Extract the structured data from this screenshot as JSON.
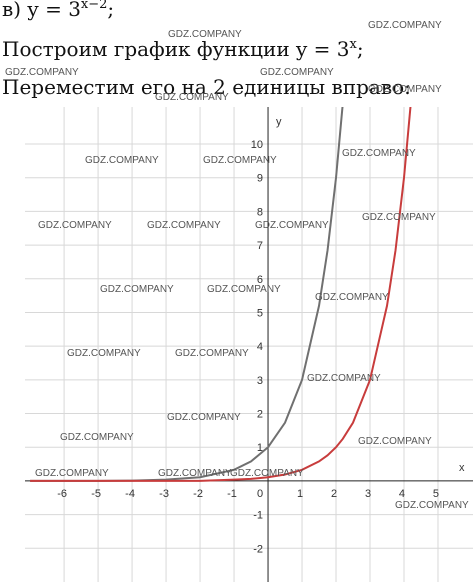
{
  "lines": [
    {
      "text": "в) y = 3",
      "sup": "x−2",
      "tail": ";"
    },
    {
      "text": "Построим график функции y = 3",
      "sup": "x",
      "tail": ";"
    },
    {
      "text": "Переместим его на 2 единицы вправо:"
    }
  ],
  "watermark": "GDZ.COMPANY",
  "chart_data": {
    "type": "line",
    "x_label": "x",
    "y_label": "y",
    "x": [
      -7,
      -6,
      -5,
      -4,
      -3,
      -2,
      -1,
      -0.5,
      0,
      0.5,
      1,
      1.5,
      1.75,
      2,
      2.2,
      2.5,
      3,
      3.5,
      3.75,
      4,
      4.2
    ],
    "series": [
      {
        "name": "y = 3^x",
        "color": "#707070",
        "values": [
          0.0,
          0.0,
          0.0,
          0.01,
          0.04,
          0.11,
          0.33,
          0.58,
          1,
          1.73,
          3,
          5.2,
          6.84,
          9,
          11.21,
          null,
          null,
          null,
          null,
          null,
          null
        ]
      },
      {
        "name": "y = 3^(x−2)",
        "color": "#c83c3c",
        "values": [
          0.0,
          0.0,
          0.0,
          0.0,
          0.0,
          0.0,
          0.04,
          0.06,
          0.11,
          0.19,
          0.33,
          0.58,
          0.76,
          1,
          1.25,
          1.73,
          3,
          5.2,
          6.84,
          9,
          11.21
        ]
      }
    ],
    "xlim": [
      -7.15,
      6.03
    ],
    "ylim": [
      -3,
      11.1
    ],
    "xticks": [
      -6,
      -5,
      -4,
      -3,
      -2,
      -1,
      1,
      2,
      3,
      4,
      5
    ],
    "yticks": [
      -2,
      -1,
      1,
      2,
      3,
      4,
      5,
      6,
      7,
      8,
      9,
      10
    ],
    "grid": true
  }
}
